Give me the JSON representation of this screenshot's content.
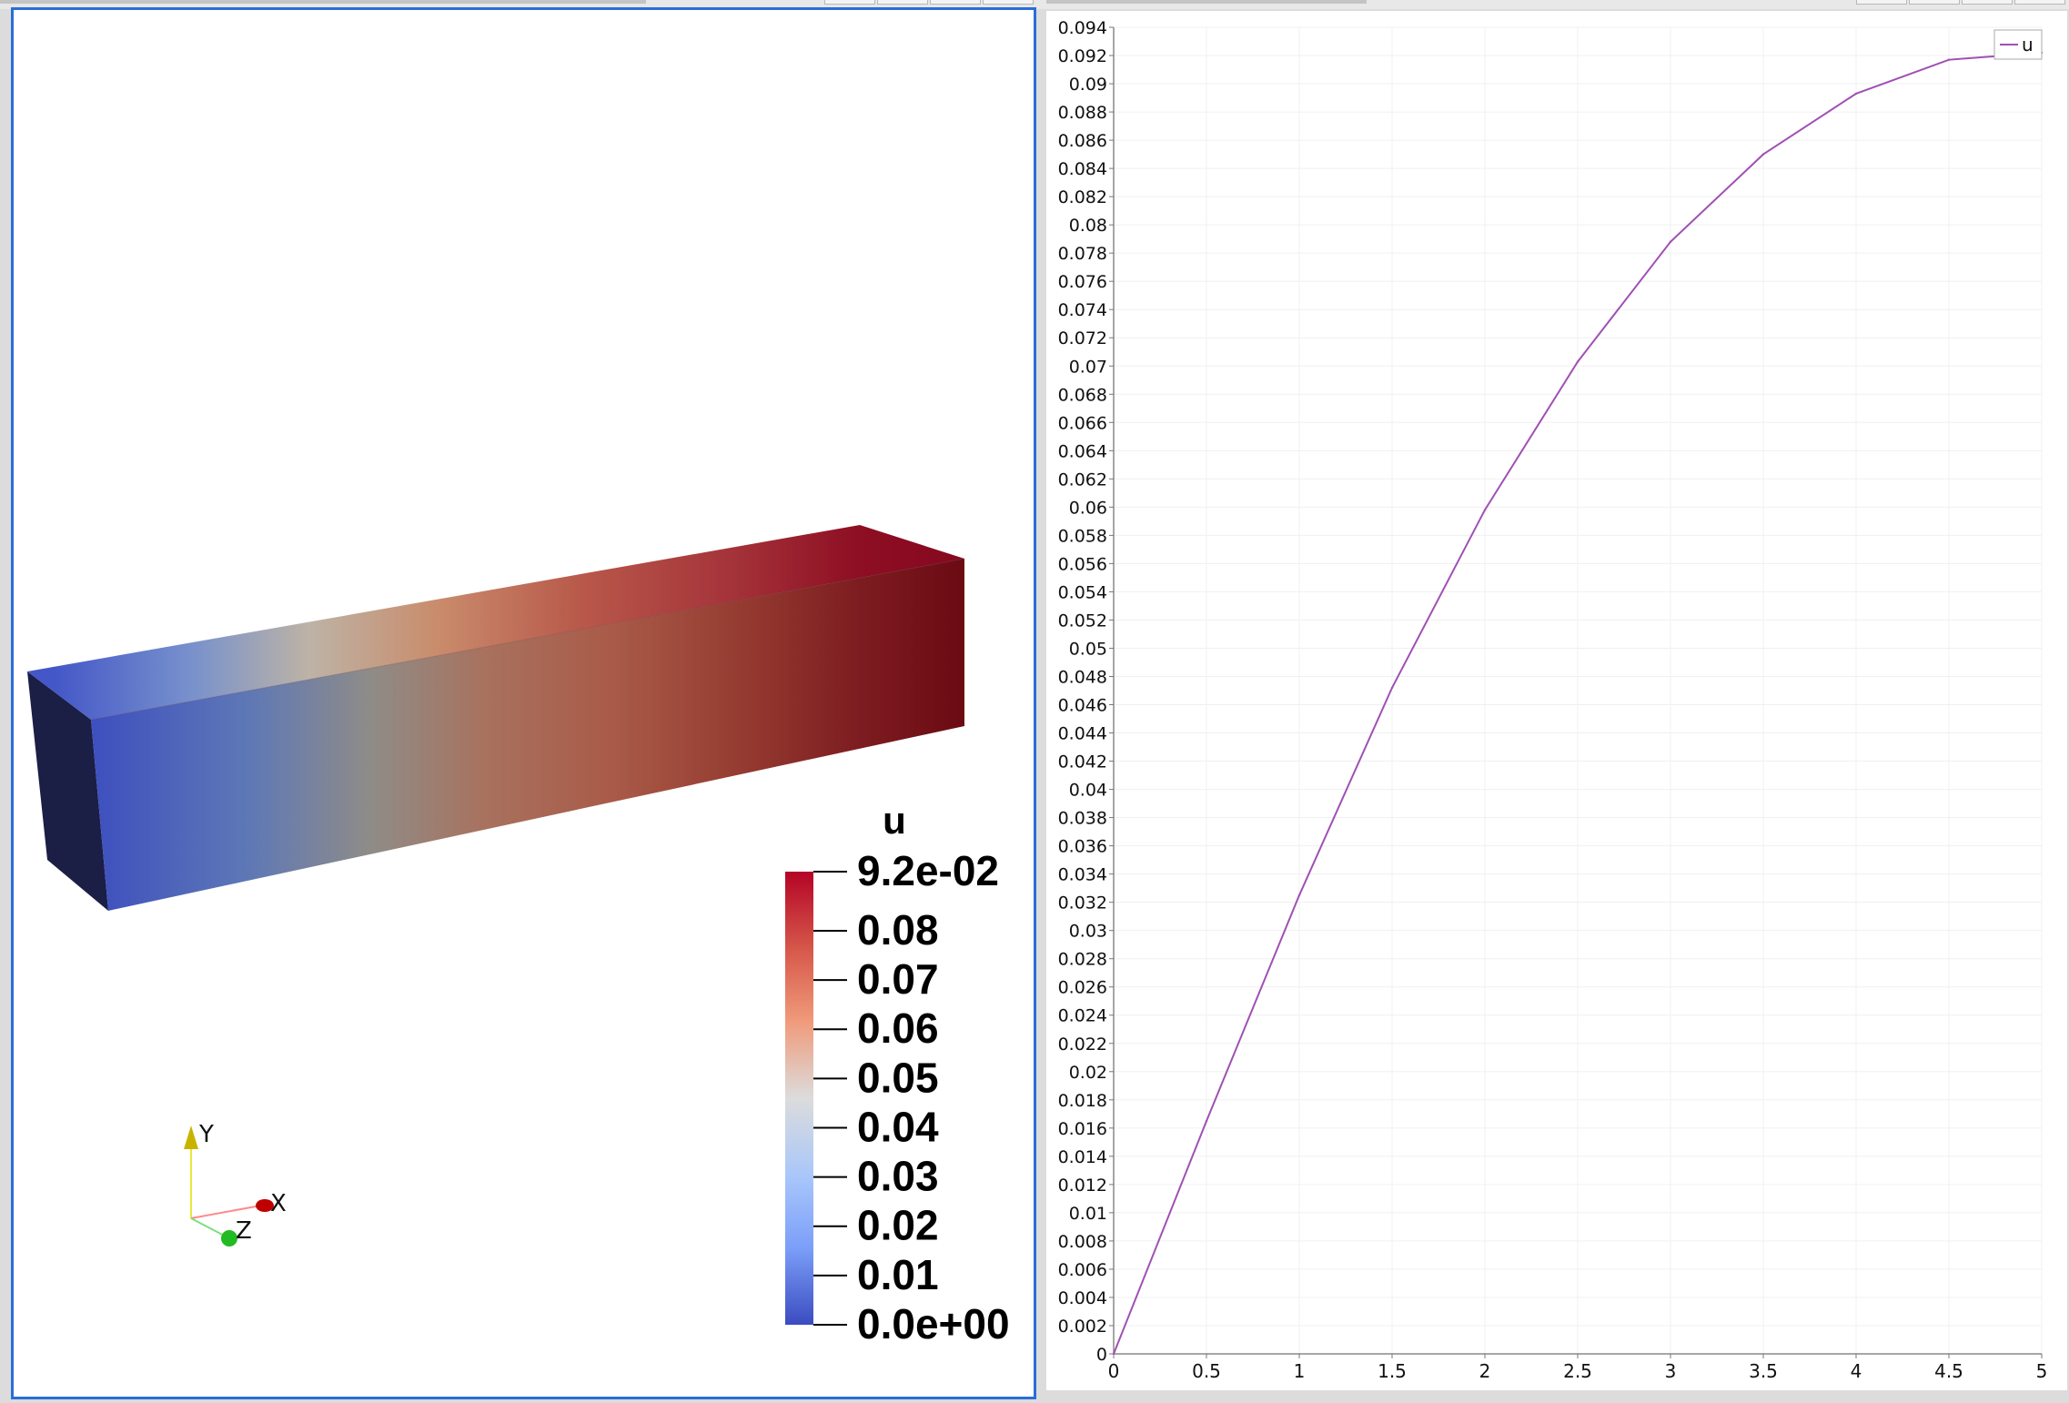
{
  "render_view": {
    "colorbar": {
      "title": "u",
      "labels": [
        "9.2e-02",
        "0.08",
        "0.07",
        "0.06",
        "0.05",
        "0.04",
        "0.03",
        "0.02",
        "0.01",
        "0.0e+00"
      ],
      "values": [
        0.092,
        0.08,
        0.07,
        0.06,
        0.05,
        0.04,
        0.03,
        0.02,
        0.01,
        0.0
      ],
      "range": [
        0.0,
        0.092
      ],
      "colormap": [
        "#3b4cc0",
        "#7b9ff9",
        "#c0d4f5",
        "#dddddd",
        "#f2cbb7",
        "#ee8468",
        "#b40426"
      ]
    },
    "orientation_axes": {
      "x": "X",
      "y": "Y",
      "z": "Z"
    }
  },
  "line_chart_view": {
    "legend": {
      "entry": "u",
      "color": "#a050b4"
    }
  },
  "chart_data": {
    "type": "line",
    "title": "",
    "xlabel": "",
    "ylabel": "",
    "xlim": [
      0,
      5
    ],
    "ylim": [
      0,
      0.094
    ],
    "grid": true,
    "legend_position": "top-right",
    "x_ticks": [
      "0",
      "0.5",
      "1",
      "1.5",
      "2",
      "2.5",
      "3",
      "3.5",
      "4",
      "4.5",
      "5"
    ],
    "y_ticks": [
      "0",
      "0.002",
      "0.004",
      "0.006",
      "0.008",
      "0.01",
      "0.012",
      "0.014",
      "0.016",
      "0.018",
      "0.02",
      "0.022",
      "0.024",
      "0.026",
      "0.028",
      "0.03",
      "0.032",
      "0.034",
      "0.036",
      "0.038",
      "0.04",
      "0.042",
      "0.044",
      "0.046",
      "0.048",
      "0.05",
      "0.052",
      "0.054",
      "0.056",
      "0.058",
      "0.06",
      "0.062",
      "0.064",
      "0.066",
      "0.068",
      "0.07",
      "0.072",
      "0.074",
      "0.076",
      "0.078",
      "0.08",
      "0.082",
      "0.084",
      "0.086",
      "0.088",
      "0.09",
      "0.092",
      "0.094"
    ],
    "series": [
      {
        "name": "u",
        "color": "#a050b4",
        "x": [
          0,
          0.5,
          1,
          1.5,
          2,
          2.5,
          3,
          3.5,
          4,
          4.5,
          5
        ],
        "y": [
          0,
          0.0165,
          0.0325,
          0.0472,
          0.0598,
          0.0703,
          0.0788,
          0.085,
          0.0893,
          0.0917,
          0.0922
        ]
      }
    ]
  }
}
